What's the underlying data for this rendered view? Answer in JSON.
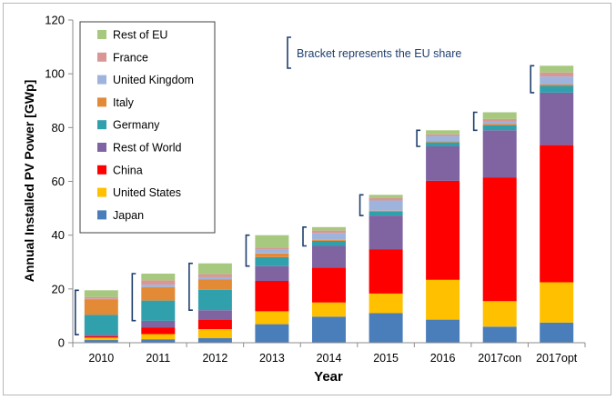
{
  "chart_data": {
    "type": "bar",
    "stacked": true,
    "title": "",
    "xlabel": "Year",
    "ylabel": "Annual Installed PV Power [GWp]",
    "ylim": [
      0,
      120
    ],
    "yticks": [
      0,
      20,
      40,
      60,
      80,
      100,
      120
    ],
    "categories": [
      "2010",
      "2011",
      "2012",
      "2013",
      "2014",
      "2015",
      "2016",
      "2017con",
      "2017opt"
    ],
    "series": [
      {
        "name": "Japan",
        "color": "#4a7ebb",
        "values": [
          1.0,
          1.3,
          1.7,
          6.9,
          9.7,
          11.0,
          8.6,
          6.0,
          7.5
        ]
      },
      {
        "name": "United States",
        "color": "#ffc000",
        "values": [
          0.9,
          1.9,
          3.4,
          4.8,
          5.3,
          7.3,
          14.8,
          9.5,
          15.0
        ]
      },
      {
        "name": "China",
        "color": "#ff0000",
        "values": [
          0.5,
          2.5,
          3.5,
          11.3,
          13.0,
          16.5,
          36.8,
          46.0,
          51.0
        ]
      },
      {
        "name": "Rest of World",
        "color": "#8064a2",
        "values": [
          0.6,
          2.5,
          3.5,
          5.5,
          8.0,
          12.5,
          12.8,
          17.5,
          19.5
        ]
      },
      {
        "name": "Germany",
        "color": "#31a0ad",
        "values": [
          7.4,
          7.5,
          7.6,
          3.3,
          1.9,
          1.5,
          1.5,
          1.8,
          2.5
        ]
      },
      {
        "name": "Italy",
        "color": "#e38a37",
        "values": [
          5.8,
          5.0,
          3.8,
          1.4,
          0.4,
          0.3,
          0.4,
          0.5,
          0.5
        ]
      },
      {
        "name": "United Kingdom",
        "color": "#9eb4dc",
        "values": [
          0.1,
          0.9,
          0.9,
          1.5,
          2.5,
          3.8,
          2.0,
          1.0,
          3.0
        ]
      },
      {
        "name": "France",
        "color": "#d99694",
        "values": [
          0.7,
          1.6,
          1.1,
          0.6,
          0.9,
          0.9,
          0.6,
          0.9,
          1.5
        ]
      },
      {
        "name": "Rest of EU",
        "color": "#a7c97f",
        "values": [
          2.5,
          2.5,
          4.0,
          4.7,
          1.3,
          1.2,
          1.5,
          2.5,
          2.5
        ]
      }
    ],
    "bracket_start_series": "Germany",
    "annotations": [
      {
        "text": "Bracket represents the EU share"
      }
    ],
    "legend_order": [
      "Rest of EU",
      "France",
      "United Kingdom",
      "Italy",
      "Germany",
      "Rest of World",
      "China",
      "United States",
      "Japan"
    ],
    "legend_position": "top-left",
    "grid": false
  }
}
